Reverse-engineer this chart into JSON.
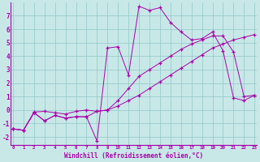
{
  "xlabel": "Windchill (Refroidissement éolien,°C)",
  "background_color": "#c8e8e8",
  "line_color": "#aa00aa",
  "grid_color": "#99cccc",
  "x_ticks": [
    0,
    1,
    2,
    3,
    4,
    5,
    6,
    7,
    8,
    9,
    10,
    11,
    12,
    13,
    14,
    15,
    16,
    17,
    18,
    19,
    20,
    21,
    22,
    23
  ],
  "y_ticks": [
    -2,
    -1,
    0,
    1,
    2,
    3,
    4,
    5,
    6,
    7
  ],
  "xlim": [
    -0.2,
    23.2
  ],
  "ylim": [
    -2.6,
    8.0
  ],
  "line1_x": [
    0,
    1,
    2,
    3,
    4,
    5,
    6,
    7,
    8,
    9,
    10,
    11,
    12,
    13,
    14,
    15,
    16,
    17,
    18,
    19,
    20,
    21,
    22,
    23
  ],
  "line1_y": [
    -1.4,
    -1.5,
    -0.2,
    -0.8,
    -0.4,
    -0.6,
    -0.5,
    -0.5,
    -2.3,
    4.6,
    4.7,
    2.6,
    7.7,
    7.4,
    7.6,
    6.5,
    5.8,
    5.2,
    5.3,
    5.8,
    4.4,
    0.9,
    0.7,
    1.1
  ],
  "line2_x": [
    0,
    1,
    2,
    3,
    4,
    5,
    6,
    7,
    8,
    9,
    10,
    11,
    12,
    13,
    14,
    15,
    16,
    17,
    18,
    19,
    20,
    21,
    22,
    23
  ],
  "line2_y": [
    -1.4,
    -1.5,
    -0.15,
    -0.1,
    -0.2,
    -0.3,
    -0.1,
    0.0,
    -0.1,
    0.0,
    0.3,
    0.7,
    1.1,
    1.6,
    2.1,
    2.6,
    3.1,
    3.6,
    4.1,
    4.6,
    4.9,
    5.2,
    5.4,
    5.6
  ],
  "line3_x": [
    0,
    1,
    2,
    3,
    4,
    5,
    6,
    7,
    8,
    9,
    10,
    11,
    12,
    13,
    14,
    15,
    16,
    17,
    18,
    19,
    20,
    21,
    22,
    23
  ],
  "line3_y": [
    -1.4,
    -1.5,
    -0.2,
    -0.8,
    -0.4,
    -0.6,
    -0.5,
    -0.5,
    -0.1,
    0.0,
    0.7,
    1.6,
    2.5,
    3.0,
    3.5,
    4.0,
    4.5,
    4.9,
    5.2,
    5.5,
    5.5,
    4.3,
    1.0,
    1.1
  ]
}
